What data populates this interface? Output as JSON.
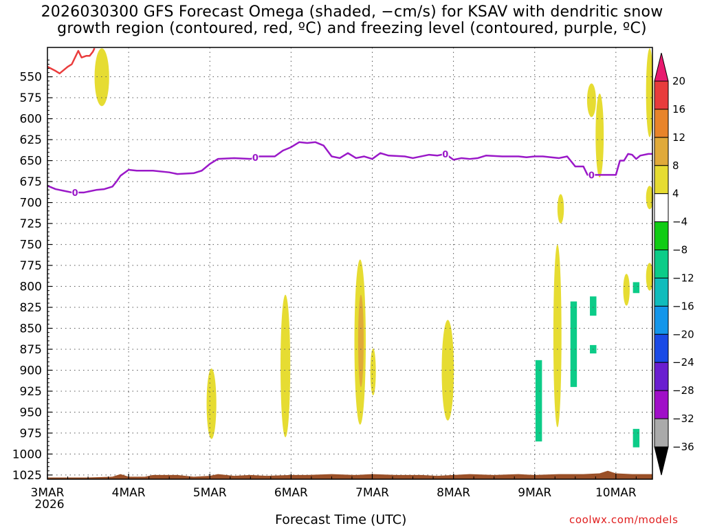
{
  "title": {
    "line1": "2026030300 GFS Forecast Omega (shaded, −cm/s) for KSAV with dendritic snow",
    "line2": "growth region (contoured, red, ºC) and freezing level (contoured, purple, ºC)"
  },
  "xlabel": "Forecast Time (UTC)",
  "credit": "coolwx.com/models",
  "chart_data": {
    "type": "contour-shaded time-height",
    "y_axis": {
      "reversed": true,
      "ticks": [
        550,
        575,
        600,
        625,
        650,
        675,
        700,
        725,
        750,
        775,
        800,
        825,
        850,
        875,
        900,
        925,
        950,
        975,
        1000,
        1025
      ],
      "range": [
        515,
        1030
      ]
    },
    "x_axis": {
      "ticks": [
        {
          "t": 0,
          "label": "3MAR"
        },
        {
          "t": 1,
          "label": "4MAR"
        },
        {
          "t": 2,
          "label": "5MAR"
        },
        {
          "t": 3,
          "label": "6MAR"
        },
        {
          "t": 4,
          "label": "7MAR"
        },
        {
          "t": 5,
          "label": "8MAR"
        },
        {
          "t": 6,
          "label": "9MAR"
        },
        {
          "t": 7,
          "label": "10MAR"
        }
      ],
      "year_label": "2026",
      "range": [
        0,
        7.45
      ]
    },
    "grid": true,
    "colorbar": {
      "labels": [
        "20",
        "16",
        "12",
        "8",
        "4",
        "−4",
        "−8",
        "−12",
        "−16",
        "−20",
        "−24",
        "−28",
        "−32",
        "−36"
      ],
      "colors": [
        "#e8196e",
        "#e83c3c",
        "#e8842a",
        "#e0aa3a",
        "#e6dc32",
        "#ffffff",
        "#10cc14",
        "#0ccc88",
        "#10bcbc",
        "#1496ea",
        "#1a4ae6",
        "#6a1ed0",
        "#a00ec8",
        "#aaaaaa",
        "#000000"
      ]
    },
    "freezing_level": {
      "label": "0",
      "color": "#9a18c8",
      "points": [
        [
          0,
          680
        ],
        [
          0.1,
          684
        ],
        [
          0.2,
          686
        ],
        [
          0.3,
          688
        ],
        [
          0.45,
          688
        ],
        [
          0.6,
          685
        ],
        [
          0.7,
          684
        ],
        [
          0.8,
          681
        ],
        [
          0.85,
          675
        ],
        [
          0.9,
          668
        ],
        [
          1,
          661
        ],
        [
          1.1,
          662
        ],
        [
          1.3,
          662
        ],
        [
          1.5,
          664
        ],
        [
          1.6,
          666
        ],
        [
          1.8,
          665
        ],
        [
          1.9,
          662
        ],
        [
          2.0,
          654
        ],
        [
          2.1,
          648
        ],
        [
          2.3,
          647
        ],
        [
          2.5,
          648
        ],
        [
          2.6,
          645
        ],
        [
          2.8,
          645
        ],
        [
          2.9,
          638
        ],
        [
          3.0,
          634
        ],
        [
          3.1,
          628
        ],
        [
          3.2,
          629
        ],
        [
          3.3,
          628
        ],
        [
          3.4,
          632
        ],
        [
          3.5,
          645
        ],
        [
          3.6,
          647
        ],
        [
          3.7,
          641
        ],
        [
          3.8,
          647
        ],
        [
          3.9,
          645
        ],
        [
          4.0,
          648
        ],
        [
          4.1,
          641
        ],
        [
          4.2,
          644
        ],
        [
          4.4,
          645
        ],
        [
          4.5,
          647
        ],
        [
          4.7,
          643
        ],
        [
          4.8,
          644
        ],
        [
          4.9,
          642
        ],
        [
          5.0,
          649
        ],
        [
          5.1,
          647
        ],
        [
          5.2,
          648
        ],
        [
          5.3,
          647
        ],
        [
          5.4,
          644
        ],
        [
          5.6,
          645
        ],
        [
          5.8,
          645
        ],
        [
          5.9,
          646
        ],
        [
          6.0,
          645
        ],
        [
          6.1,
          645
        ],
        [
          6.3,
          647
        ],
        [
          6.4,
          645
        ],
        [
          6.5,
          657
        ],
        [
          6.6,
          657
        ],
        [
          6.65,
          667
        ],
        [
          6.8,
          667
        ],
        [
          7.0,
          667
        ],
        [
          7.05,
          650
        ],
        [
          7.1,
          650
        ],
        [
          7.15,
          642
        ],
        [
          7.2,
          643
        ],
        [
          7.25,
          648
        ],
        [
          7.3,
          644
        ],
        [
          7.4,
          642
        ],
        [
          7.45,
          642
        ]
      ]
    },
    "dgz_contour": {
      "color": "#ea3c3c",
      "points": [
        [
          0,
          538
        ],
        [
          0.1,
          543
        ],
        [
          0.15,
          546
        ],
        [
          0.25,
          538
        ],
        [
          0.3,
          535
        ],
        [
          0.35,
          525
        ],
        [
          0.38,
          519
        ],
        [
          0.42,
          527
        ],
        [
          0.48,
          525
        ],
        [
          0.52,
          525
        ],
        [
          0.56,
          520
        ],
        [
          0.58,
          516
        ]
      ]
    },
    "omega_regions": [
      {
        "value": 4,
        "t": 0.67,
        "top": 516,
        "bottom": 585,
        "w": 0.18
      },
      {
        "value": 4,
        "t": 6.7,
        "top": 558,
        "bottom": 598,
        "w": 0.11
      },
      {
        "value": 4,
        "t": 6.8,
        "top": 570,
        "bottom": 670,
        "w": 0.1
      },
      {
        "value": 4,
        "t": 7.45,
        "top": 516,
        "bottom": 622,
        "w": 0.09
      },
      {
        "value": 4,
        "t": 7.45,
        "top": 680,
        "bottom": 708,
        "w": 0.09
      },
      {
        "value": 4,
        "t": 7.45,
        "top": 772,
        "bottom": 805,
        "w": 0.09
      },
      {
        "value": 4,
        "t": 6.32,
        "top": 690,
        "bottom": 725,
        "w": 0.08
      },
      {
        "value": 4,
        "t": 2.02,
        "top": 898,
        "bottom": 982,
        "w": 0.12
      },
      {
        "value": 4,
        "t": 2.93,
        "top": 810,
        "bottom": 980,
        "w": 0.12
      },
      {
        "value": 4,
        "t": 3.85,
        "top": 768,
        "bottom": 965,
        "w": 0.14
      },
      {
        "value": 4,
        "t": 4.01,
        "top": 874,
        "bottom": 930,
        "w": 0.06
      },
      {
        "value": 4,
        "t": 4.93,
        "top": 840,
        "bottom": 960,
        "w": 0.15
      },
      {
        "value": 4,
        "t": 6.28,
        "top": 750,
        "bottom": 968,
        "w": 0.1
      },
      {
        "value": 4,
        "t": 7.13,
        "top": 785,
        "bottom": 823,
        "w": 0.08
      },
      {
        "value": 8,
        "t": 3.86,
        "top": 810,
        "bottom": 920,
        "w": 0.06
      },
      {
        "value": -8,
        "t": 6.05,
        "top": 888,
        "bottom": 985,
        "w": 0.08
      },
      {
        "value": -8,
        "t": 6.48,
        "top": 818,
        "bottom": 920,
        "w": 0.08
      },
      {
        "value": -8,
        "t": 6.72,
        "top": 812,
        "bottom": 835,
        "w": 0.08
      },
      {
        "value": -8,
        "t": 6.72,
        "top": 870,
        "bottom": 880,
        "w": 0.08
      },
      {
        "value": -8,
        "t": 7.25,
        "top": 795,
        "bottom": 808,
        "w": 0.08
      },
      {
        "value": -8,
        "t": 7.25,
        "top": 970,
        "bottom": 992,
        "w": 0.08
      }
    ],
    "terrain": {
      "color": "#9a5028",
      "points": [
        [
          0,
          1028
        ],
        [
          0.5,
          1028
        ],
        [
          0.8,
          1027
        ],
        [
          0.9,
          1024
        ],
        [
          1.0,
          1027
        ],
        [
          1.2,
          1027
        ],
        [
          1.3,
          1025
        ],
        [
          1.6,
          1025
        ],
        [
          1.8,
          1027
        ],
        [
          2.0,
          1026
        ],
        [
          2.1,
          1024
        ],
        [
          2.3,
          1026
        ],
        [
          2.5,
          1025
        ],
        [
          2.7,
          1026
        ],
        [
          3.0,
          1025
        ],
        [
          3.2,
          1025
        ],
        [
          3.5,
          1024
        ],
        [
          3.8,
          1025
        ],
        [
          4.0,
          1024
        ],
        [
          4.3,
          1025
        ],
        [
          4.6,
          1025
        ],
        [
          4.8,
          1026
        ],
        [
          5.0,
          1025
        ],
        [
          5.2,
          1024
        ],
        [
          5.5,
          1025
        ],
        [
          5.8,
          1024
        ],
        [
          6.0,
          1025
        ],
        [
          6.3,
          1024
        ],
        [
          6.6,
          1024
        ],
        [
          6.8,
          1023
        ],
        [
          6.9,
          1020
        ],
        [
          7.0,
          1023
        ],
        [
          7.2,
          1024
        ],
        [
          7.45,
          1024
        ]
      ]
    }
  }
}
